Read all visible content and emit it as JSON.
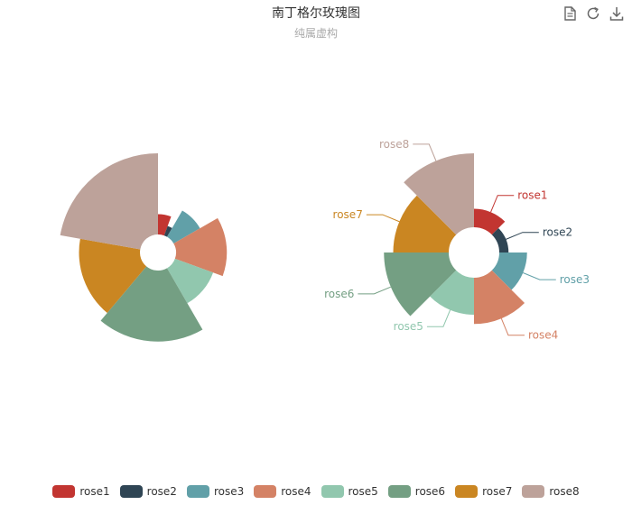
{
  "chart_data": {
    "type": "pie",
    "variant": "nightingale-rose",
    "title": "南丁格尔玫瑰图",
    "subtitle": "纯属虚构",
    "categories": [
      "rose1",
      "rose2",
      "rose3",
      "rose4",
      "rose5",
      "rose6",
      "rose7",
      "rose8"
    ],
    "colors": [
      "#c23531",
      "#2f4554",
      "#61a0a8",
      "#d48265",
      "#91c7ae",
      "#749f83",
      "#ca8622",
      "#bda29a"
    ],
    "series": [
      {
        "roseType": "radius",
        "values": [
          10,
          5,
          15,
          25,
          20,
          35,
          30,
          40
        ]
      },
      {
        "roseType": "area",
        "values": [
          10,
          5,
          15,
          25,
          20,
          35,
          30,
          40
        ]
      }
    ],
    "legend_position": "bottom"
  },
  "toolbox": {
    "data_view": "document-icon",
    "restore": "refresh-icon",
    "save_image": "download-icon"
  }
}
